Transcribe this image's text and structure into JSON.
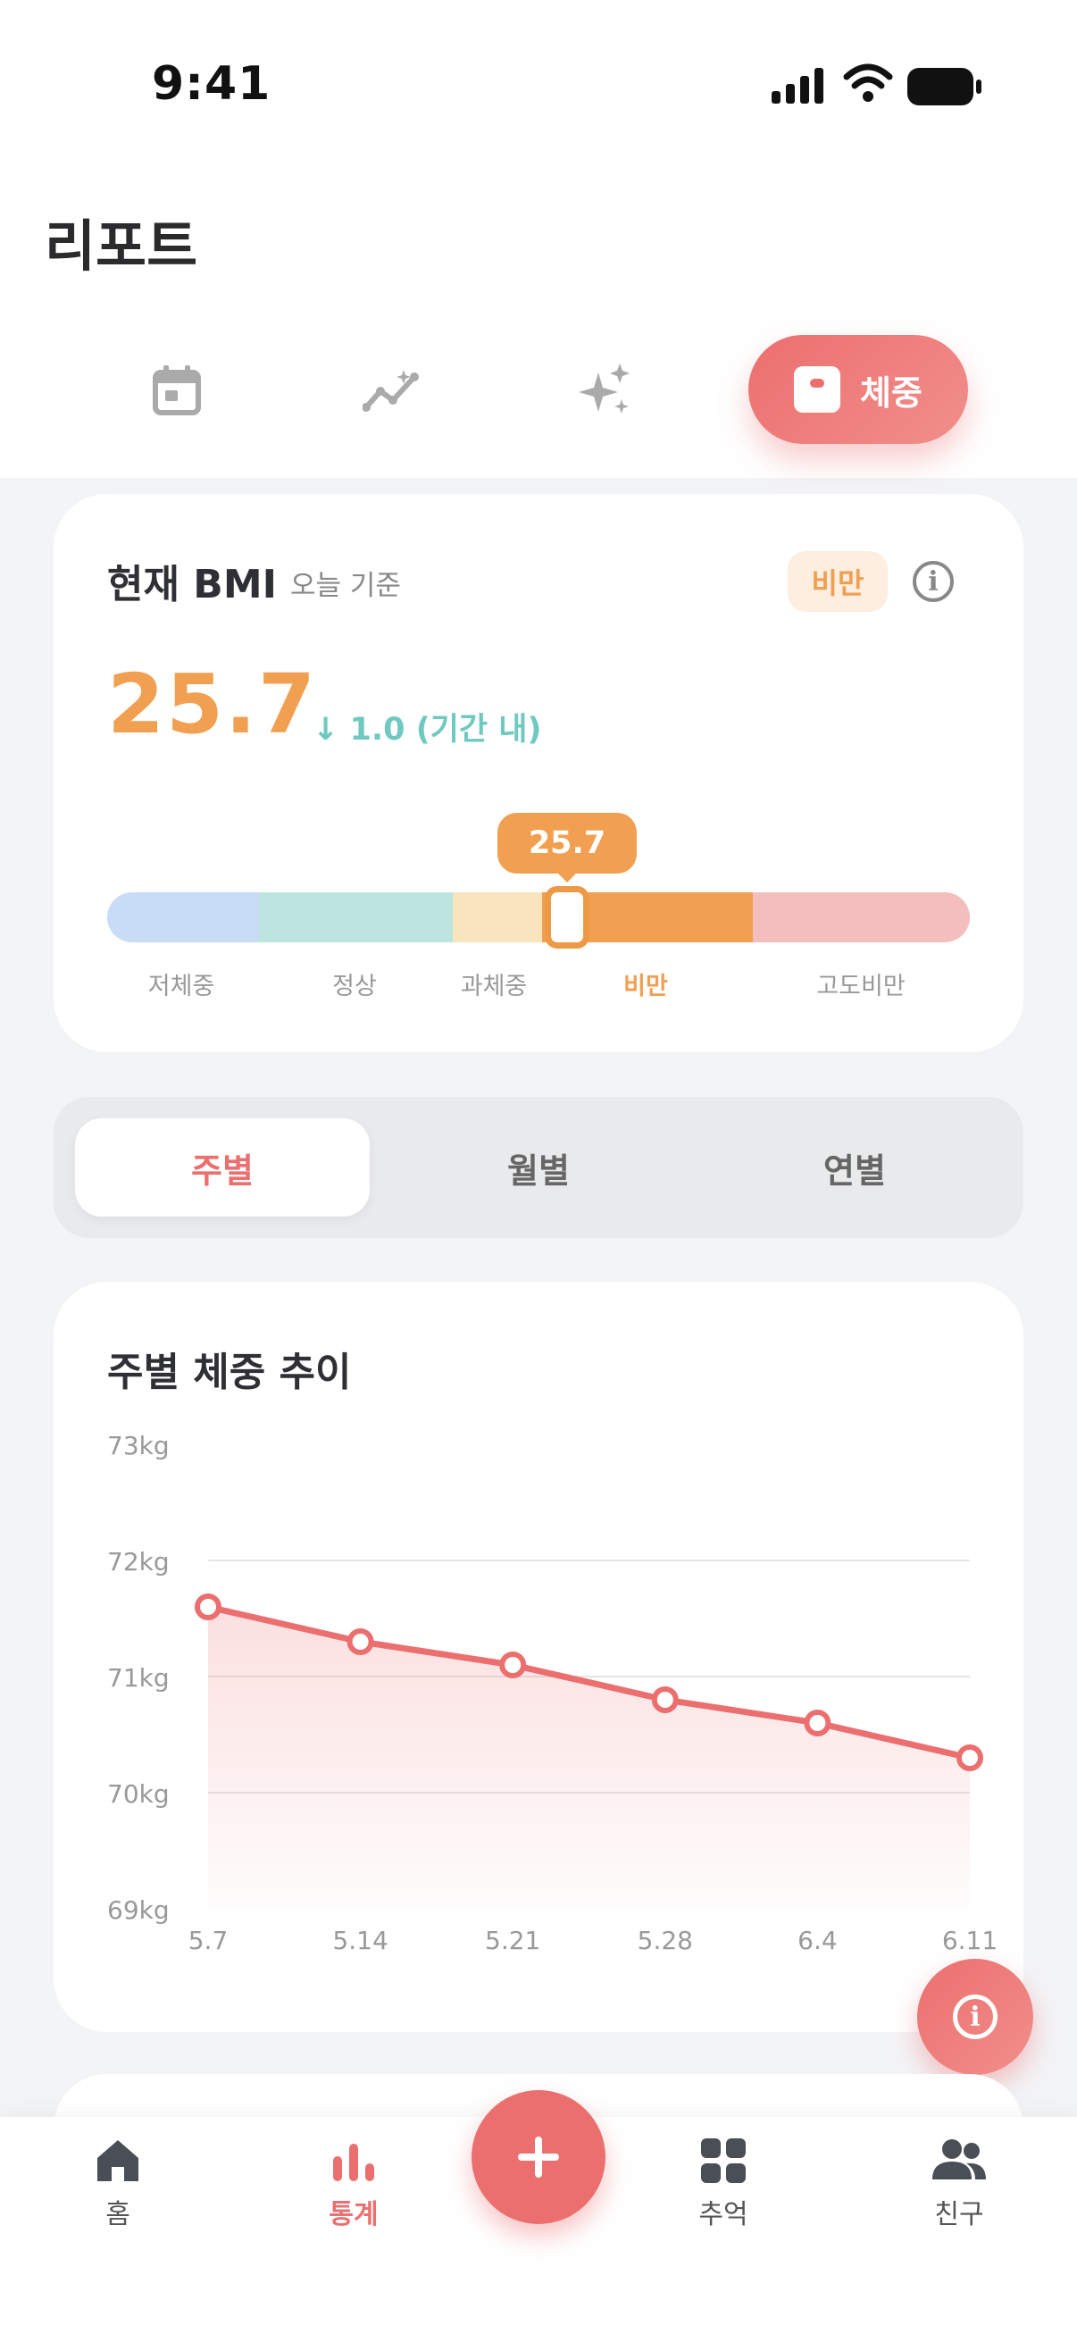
{
  "status_bar": {
    "time": "9:41"
  },
  "page": {
    "title": "리포트"
  },
  "tabs": [
    {
      "icon": "calendar-icon",
      "active": false
    },
    {
      "icon": "trend-icon",
      "active": false
    },
    {
      "icon": "sparkle-icon",
      "active": false
    },
    {
      "icon": "scale-icon",
      "label": "체중",
      "active": true
    }
  ],
  "bmi": {
    "title": "현재 BMI",
    "subtitle": "오늘 기준",
    "badge": "비만",
    "value": "25.7",
    "delta": "↓ 1.0 (기간 내)",
    "marker_value": "25.7",
    "categories": [
      "저체중",
      "정상",
      "과체중",
      "비만",
      "고도비만"
    ],
    "active_category": "비만",
    "colors": {
      "underweight": "#c9dcf5",
      "normal": "#bde5df",
      "overweight": "#f8e4bd",
      "obese": "#f0a050",
      "severe": "#f5bebe"
    }
  },
  "period_tabs": {
    "items": [
      "주별",
      "월별",
      "연별"
    ],
    "active": "주별"
  },
  "chart_title": "주별 체중 추이",
  "chart_data": {
    "type": "area",
    "title": "주별 체중 추이",
    "xlabel": "",
    "ylabel": "",
    "x": [
      "5.7",
      "5.14",
      "5.21",
      "5.28",
      "6.4",
      "6.11"
    ],
    "values": [
      71.6,
      71.3,
      71.1,
      70.8,
      70.6,
      70.3
    ],
    "ylim": [
      69,
      73
    ],
    "yticks": [
      "73kg",
      "72kg",
      "71kg",
      "70kg",
      "69kg"
    ],
    "grid": true,
    "color": "#ec6f6f"
  },
  "bottom_nav": [
    {
      "icon": "home-icon",
      "label": "홈",
      "active": false
    },
    {
      "icon": "stats-icon",
      "label": "통계",
      "active": true
    },
    {
      "icon": "plus-icon",
      "label": "",
      "active": false
    },
    {
      "icon": "grid-icon",
      "label": "추억",
      "active": false
    },
    {
      "icon": "friends-icon",
      "label": "친구",
      "active": false
    }
  ]
}
